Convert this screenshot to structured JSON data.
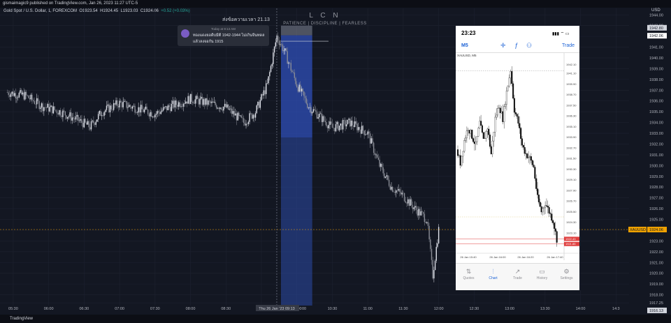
{
  "header": {
    "published": "gismaimagic9 published on TradingView.com, Jan 26, 2023 11:27 UTC-5",
    "symbol": "Gold Spot / U.S. Dollar, 1, FOREXCOM",
    "open": "O1923.54",
    "high": "H1924.45",
    "low": "L1923.03",
    "close": "C1924.06",
    "change": "+0.52 (+0.03%)",
    "currency": "USD"
  },
  "watermark": {
    "title": "L C N",
    "subtitle": "PATIENCE  |  DISCIPLINE  |  FEARLESS"
  },
  "annotation": "ส่งข้อความเวลา 21.13",
  "notification": {
    "time": "Today at 9:13 AM",
    "line1": "ทองแดงยอดีบมีตี 1942-1944 ไม่เกินจีนทดล",
    "line2": "แล้วลงจอกัน 1915"
  },
  "footer": {
    "brand": "TradingView"
  },
  "colors": {
    "background": "#131722",
    "up": "#c9ccd4",
    "price_label": "#f0a200",
    "highlight": "#2b4aa8"
  },
  "chart_data": {
    "type": "line",
    "y_axis": {
      "ticks": [
        1944.0,
        1943.0,
        1942.0,
        1941.0,
        1940.0,
        1939.0,
        1938.0,
        1937.0,
        1936.0,
        1935.0,
        1934.0,
        1933.0,
        1932.0,
        1931.0,
        1930.0,
        1929.0,
        1928.0,
        1927.0,
        1926.0,
        1925.0,
        1924.0,
        1923.0,
        1922.0,
        1921.0,
        1920.0,
        1919.0,
        1918.0,
        1917.25
      ],
      "range": [
        1917.25,
        1944.5
      ]
    },
    "price_labels": [
      {
        "label": "",
        "value": "1942.80"
      },
      {
        "label": "",
        "value": "1942.06"
      },
      {
        "label": "XAUUSD",
        "value": "1924.06"
      },
      {
        "label": "",
        "value": "1916.13"
      }
    ],
    "time_ticks": [
      "05:30",
      "06:00",
      "06:30",
      "07:00",
      "07:30",
      "08:00",
      "08:30",
      "",
      "10:00",
      "10:30",
      "11:00",
      "11:30",
      "12:00",
      "12:30",
      "13:00",
      "13:30",
      "14:00",
      "14:3"
    ],
    "crosshair_label": "Thu 26 Jan '23   09:13",
    "crosshair_time_after": "00",
    "highlight_start": "09:13",
    "highlight_end": "09:43",
    "approx_close_series": [
      [
        "05:25",
        1936.8
      ],
      [
        "05:40",
        1936.5
      ],
      [
        "05:55",
        1935.5
      ],
      [
        "06:10",
        1935.0
      ],
      [
        "06:25",
        1934.2
      ],
      [
        "06:35",
        1933.6
      ],
      [
        "06:45",
        1935.0
      ],
      [
        "07:00",
        1935.8
      ],
      [
        "07:15",
        1935.3
      ],
      [
        "07:30",
        1934.8
      ],
      [
        "07:45",
        1935.6
      ],
      [
        "08:00",
        1936.2
      ],
      [
        "08:15",
        1935.8
      ],
      [
        "08:30",
        1935.4
      ],
      [
        "08:45",
        1934.0
      ],
      [
        "08:55",
        1935.0
      ],
      [
        "09:05",
        1937.5
      ],
      [
        "09:13",
        1942.0
      ],
      [
        "09:20",
        1940.5
      ],
      [
        "09:30",
        1937.5
      ],
      [
        "09:40",
        1935.5
      ],
      [
        "09:50",
        1934.5
      ],
      [
        "10:00",
        1933.5
      ],
      [
        "10:15",
        1934.0
      ],
      [
        "10:30",
        1933.0
      ],
      [
        "10:40",
        1930.0
      ],
      [
        "10:50",
        1928.0
      ],
      [
        "11:00",
        1927.2
      ],
      [
        "11:10",
        1926.0
      ],
      [
        "11:20",
        1925.0
      ],
      [
        "11:25",
        1919.8
      ],
      [
        "11:30",
        1924.06
      ]
    ]
  },
  "phone": {
    "time": "23:23",
    "status": "▮▮▮ ⌔ ▭",
    "timeframe": "M5",
    "trade": "Trade",
    "symbol_label": "XAUUSD, M5",
    "header_icons": [
      "crosshair-icon",
      "function-icon",
      "objects-icon"
    ],
    "chart_data": {
      "type": "line",
      "y_ticks": [
        "1942.10",
        "1941.10",
        "1939.90",
        "1938.70",
        "1937.50",
        "1936.30",
        "1935.10",
        "1933.90",
        "1932.70",
        "1931.50",
        "1930.30",
        "1929.10",
        "1927.90",
        "1926.70",
        "1925.50",
        "1924.30",
        "1923.10",
        "1921.90"
      ],
      "x_ticks": [
        "26 Jan 15:40",
        "26 Jan 16:00",
        "26 Jan 16:20",
        "26 Jan 17:40"
      ],
      "bid": "1922.43",
      "ask": "1921.85",
      "approx_close_series": [
        1932.5,
        1931.0,
        1933.5,
        1935.0,
        1934.0,
        1933.0,
        1935.5,
        1933.5,
        1935.0,
        1932.0,
        1936.0,
        1937.5,
        1936.0,
        1939.0,
        1941.5,
        1937.0,
        1935.5,
        1933.0,
        1932.0,
        1931.5,
        1930.5,
        1927.0,
        1925.5,
        1926.5,
        1925.5,
        1924.5,
        1922.4
      ]
    },
    "tabs": [
      {
        "label": "Quotes",
        "icon": "quotes-icon"
      },
      {
        "label": "Chart",
        "icon": "chart-icon",
        "active": true
      },
      {
        "label": "Trade",
        "icon": "trade-icon"
      },
      {
        "label": "History",
        "icon": "history-icon"
      },
      {
        "label": "Settings",
        "icon": "settings-icon"
      }
    ]
  }
}
